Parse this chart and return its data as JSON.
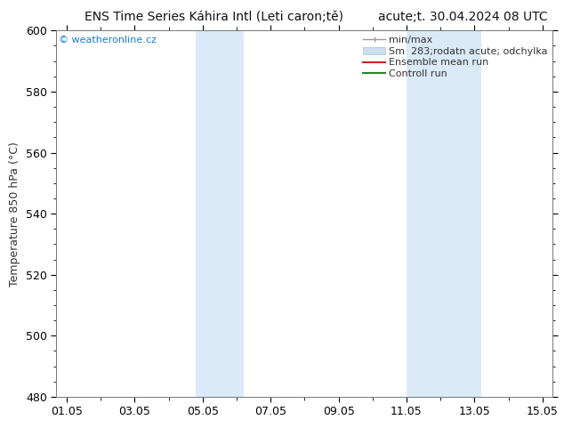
{
  "title_left": "ENS Time Series Káhira Intl (Leti caron;tě)",
  "title_right": "acute;t. 30.04.2024 08 UTC",
  "ylabel": "Temperature 850 hPa (°C)",
  "xlabel_ticks": [
    "01.05",
    "03.05",
    "05.05",
    "07.05",
    "09.05",
    "11.05",
    "13.05",
    "15.05"
  ],
  "xlabel_tick_positions": [
    0,
    2,
    4,
    6,
    8,
    10,
    12,
    14
  ],
  "ylim": [
    480,
    600
  ],
  "xlim": [
    -0.3,
    14.3
  ],
  "yticks": [
    480,
    500,
    520,
    540,
    560,
    580,
    600
  ],
  "bg_color": "#ffffff",
  "plot_bg_color": "#ffffff",
  "shaded_bands": [
    {
      "x_start": 3.8,
      "x_end": 5.2,
      "color": "#daeaf8"
    },
    {
      "x_start": 10.0,
      "x_end": 12.2,
      "color": "#daeaf8"
    }
  ],
  "watermark_text": "© weatheronline.cz",
  "watermark_color": "#1a7ad4",
  "title_fontsize": 10,
  "tick_label_fontsize": 9,
  "ylabel_fontsize": 9,
  "legend_fontsize": 8
}
